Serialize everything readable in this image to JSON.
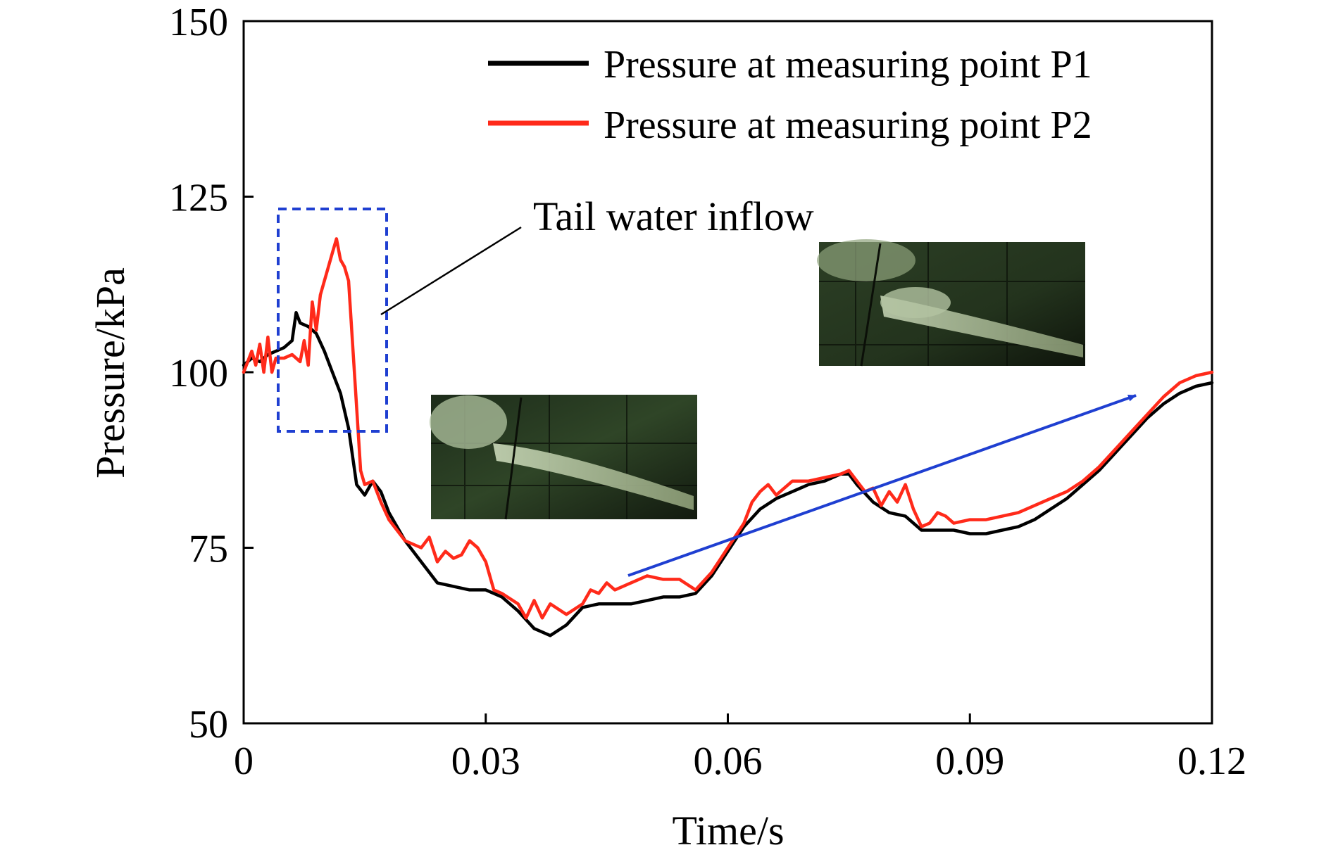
{
  "chart_data": {
    "type": "line",
    "title": "",
    "xlabel": "Time/s",
    "ylabel": "Pressure/kPa",
    "xlim": [
      0,
      0.12
    ],
    "ylim": [
      50,
      150
    ],
    "xticks": [
      0,
      0.03,
      0.06,
      0.09,
      0.12
    ],
    "xtick_labels": [
      "0",
      "0.03",
      "0.06",
      "0.09",
      "0.12"
    ],
    "yticks": [
      50,
      75,
      100,
      125,
      150
    ],
    "ytick_labels": [
      "50",
      "75",
      "100",
      "125",
      "150"
    ],
    "grid": false,
    "legend_position": "top-right",
    "series": [
      {
        "name": "Pressure at measuring point P1",
        "color": "#000000",
        "x": [
          0,
          0.001,
          0.002,
          0.003,
          0.004,
          0.005,
          0.006,
          0.0065,
          0.007,
          0.008,
          0.009,
          0.01,
          0.011,
          0.012,
          0.013,
          0.0135,
          0.014,
          0.015,
          0.016,
          0.017,
          0.018,
          0.02,
          0.022,
          0.024,
          0.026,
          0.028,
          0.03,
          0.032,
          0.034,
          0.036,
          0.038,
          0.04,
          0.042,
          0.044,
          0.046,
          0.048,
          0.05,
          0.052,
          0.054,
          0.056,
          0.058,
          0.06,
          0.062,
          0.064,
          0.066,
          0.068,
          0.07,
          0.072,
          0.074,
          0.075,
          0.076,
          0.078,
          0.08,
          0.082,
          0.084,
          0.086,
          0.088,
          0.09,
          0.092,
          0.094,
          0.096,
          0.098,
          0.1,
          0.102,
          0.104,
          0.106,
          0.108,
          0.11,
          0.112,
          0.114,
          0.116,
          0.118,
          0.12
        ],
        "y": [
          101,
          102,
          101.5,
          102.5,
          103,
          103.5,
          104.5,
          108.5,
          107,
          106.5,
          105.5,
          103,
          100,
          97,
          92,
          88,
          84,
          82.5,
          84.5,
          83,
          80,
          76,
          73,
          70,
          69.5,
          69,
          69,
          68,
          66,
          63.5,
          62.5,
          64,
          66.5,
          67,
          67,
          67,
          67.5,
          68,
          68,
          68.5,
          71,
          74.5,
          78,
          80.5,
          82,
          83,
          84,
          84.5,
          85.5,
          85.5,
          84,
          81.5,
          80,
          79.5,
          77.5,
          77.5,
          77.5,
          77,
          77,
          77.5,
          78,
          79,
          80.5,
          82,
          84,
          86,
          88.5,
          91,
          93.5,
          95.5,
          97,
          98,
          98.5
        ]
      },
      {
        "name": "Pressure at measuring point P2",
        "color": "#ff2a1a",
        "x": [
          0,
          0.001,
          0.0015,
          0.002,
          0.0025,
          0.003,
          0.0035,
          0.004,
          0.005,
          0.006,
          0.007,
          0.0075,
          0.008,
          0.0085,
          0.009,
          0.0095,
          0.01,
          0.011,
          0.0115,
          0.012,
          0.0125,
          0.013,
          0.0135,
          0.014,
          0.0145,
          0.015,
          0.016,
          0.017,
          0.018,
          0.02,
          0.022,
          0.023,
          0.024,
          0.025,
          0.026,
          0.027,
          0.028,
          0.029,
          0.03,
          0.031,
          0.032,
          0.034,
          0.035,
          0.036,
          0.037,
          0.038,
          0.04,
          0.042,
          0.043,
          0.044,
          0.045,
          0.046,
          0.048,
          0.05,
          0.052,
          0.054,
          0.056,
          0.058,
          0.06,
          0.062,
          0.063,
          0.064,
          0.065,
          0.066,
          0.068,
          0.07,
          0.072,
          0.074,
          0.075,
          0.076,
          0.077,
          0.078,
          0.079,
          0.08,
          0.081,
          0.082,
          0.083,
          0.084,
          0.085,
          0.086,
          0.087,
          0.088,
          0.09,
          0.092,
          0.094,
          0.096,
          0.098,
          0.1,
          0.102,
          0.104,
          0.106,
          0.108,
          0.11,
          0.112,
          0.114,
          0.116,
          0.118,
          0.12
        ],
        "y": [
          100,
          103,
          101,
          104,
          100,
          105,
          100,
          102,
          102,
          102.5,
          101.5,
          104.5,
          101,
          110,
          106,
          111,
          113,
          117,
          119,
          116,
          115,
          113,
          104,
          95,
          86,
          84,
          84.5,
          81.5,
          79,
          76,
          75,
          76.5,
          73,
          74.5,
          73.5,
          74,
          76,
          75,
          73,
          69,
          68.5,
          67,
          65,
          67.5,
          65,
          67,
          65.5,
          67,
          69,
          68.5,
          70,
          69,
          70,
          71,
          70.5,
          70.5,
          69,
          71.5,
          75,
          78.5,
          81.5,
          83,
          84,
          82.5,
          84.5,
          84.5,
          85,
          85.5,
          86,
          84.5,
          83,
          83.5,
          81,
          83,
          81.5,
          84,
          80.5,
          78,
          78.5,
          80,
          79.5,
          78.5,
          79,
          79,
          79.5,
          80,
          81,
          82,
          83,
          84.5,
          86.5,
          89,
          91.5,
          94,
          96.5,
          98.5,
          99.5,
          100
        ]
      }
    ],
    "annotations": [
      {
        "text": "Tail water inflow"
      }
    ]
  }
}
